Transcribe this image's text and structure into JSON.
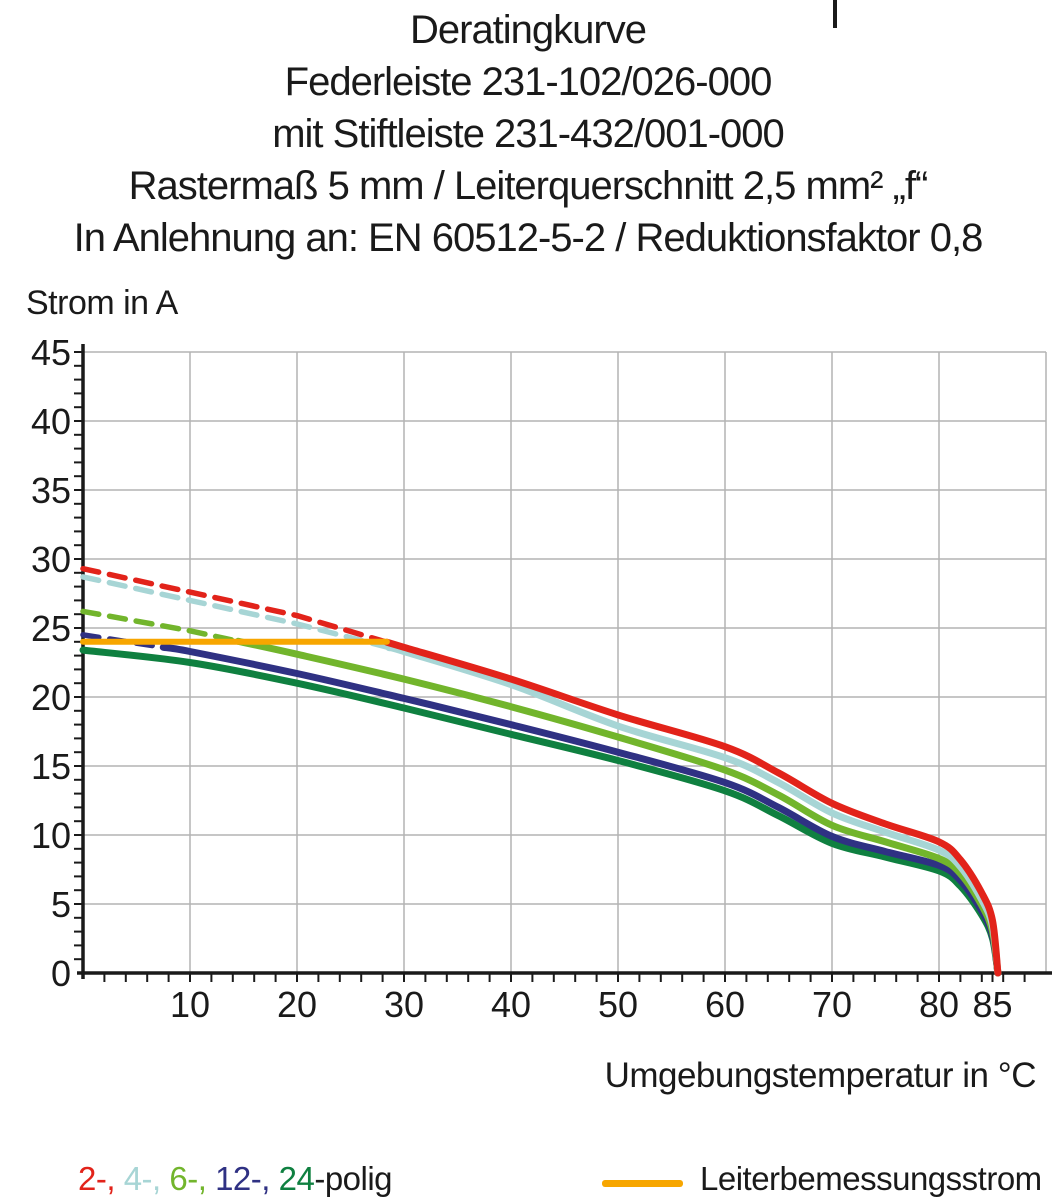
{
  "title": {
    "lines": [
      "Deratingkurve",
      "Federleiste 231-102/026-000",
      "mit Stiftleiste 231-432/001-000",
      "Rastermaß 5 mm / Leiterquerschnitt 2,5 mm² „f“",
      "In Anlehnung an: EN 60512-5-2 / Reduktionsfaktor 0,8"
    ]
  },
  "colors": {
    "red": "#e2231a",
    "light_blue": "#a7d5d5",
    "light_green": "#72b52c",
    "dark_blue": "#2f3183",
    "dark_green": "#0f8040",
    "orange": "#f7a600",
    "grid": "#b3b3b3",
    "axis": "#1a1a1a"
  },
  "chart_data": {
    "type": "line",
    "title": "Deratingkurve",
    "xlabel": "Umgebungstemperatur in °C",
    "ylabel": "Strom in A",
    "xlim": [
      0,
      90
    ],
    "ylim": [
      0,
      45
    ],
    "grid": true,
    "x_tick_labels": [
      {
        "t": 10,
        "label": "10"
      },
      {
        "t": 20,
        "label": "20"
      },
      {
        "t": 30,
        "label": "30"
      },
      {
        "t": 40,
        "label": "40"
      },
      {
        "t": 50,
        "label": "50"
      },
      {
        "t": 60,
        "label": "60"
      },
      {
        "t": 70,
        "label": "70"
      },
      {
        "t": 80,
        "label": "80"
      },
      {
        "t": 85,
        "label": "85"
      }
    ],
    "y_tick_labels": [
      {
        "a": 0,
        "label": "0"
      },
      {
        "a": 5,
        "label": "5"
      },
      {
        "a": 10,
        "label": "10"
      },
      {
        "a": 15,
        "label": "15"
      },
      {
        "a": 20,
        "label": "20"
      },
      {
        "a": 25,
        "label": "25"
      },
      {
        "a": 30,
        "label": "30"
      },
      {
        "a": 35,
        "label": "35"
      },
      {
        "a": 40,
        "label": "40"
      },
      {
        "a": 45,
        "label": "45"
      }
    ],
    "x": [
      0,
      10,
      20,
      30,
      40,
      50,
      60,
      65,
      70,
      75,
      80,
      82,
      84,
      85,
      85.5
    ],
    "series": [
      {
        "name": "24-polig",
        "color": "#0f8040",
        "dash_until": 0,
        "values": [
          23.4,
          22.5,
          21.0,
          19.2,
          17.3,
          15.4,
          13.2,
          11.4,
          9.4,
          8.4,
          7.4,
          6.3,
          4.2,
          2.5,
          0
        ]
      },
      {
        "name": "12-polig",
        "color": "#2f3183",
        "dash_until": 7.5,
        "values": [
          24.5,
          23.3,
          21.7,
          19.9,
          18.0,
          16.0,
          13.8,
          12.0,
          9.9,
          8.8,
          7.8,
          6.7,
          4.5,
          2.7,
          0
        ]
      },
      {
        "name": "6-polig",
        "color": "#72b52c",
        "dash_until": 14.5,
        "values": [
          26.2,
          24.8,
          23.1,
          21.3,
          19.3,
          17.1,
          14.7,
          12.9,
          10.7,
          9.5,
          8.3,
          7.2,
          4.9,
          3.0,
          0
        ]
      },
      {
        "name": "4-polig",
        "color": "#a7d5d5",
        "dash_until": 28.6,
        "values": [
          28.7,
          27.0,
          25.3,
          23.3,
          20.9,
          17.9,
          15.6,
          13.8,
          11.6,
          10.2,
          8.9,
          7.7,
          5.3,
          3.4,
          0
        ]
      },
      {
        "name": "2-polig",
        "color": "#e2231a",
        "dash_until": 28.4,
        "values": [
          29.3,
          27.6,
          25.9,
          23.6,
          21.3,
          18.7,
          16.4,
          14.5,
          12.3,
          10.8,
          9.5,
          8.2,
          5.8,
          3.8,
          0
        ]
      }
    ],
    "rated_current_line": {
      "name": "Leiterbemessungsstrom",
      "color": "#f7a600",
      "value": 24,
      "t_from": 0,
      "t_to": 28.4
    },
    "legend_position": "bottom"
  },
  "legend": {
    "poles": {
      "parts": [
        {
          "text": "2-, ",
          "color": "#e2231a"
        },
        {
          "text": "4-, ",
          "color": "#a7d5d5"
        },
        {
          "text": "6-, ",
          "color": "#72b52c"
        },
        {
          "text": "12-, ",
          "color": "#2f3183"
        },
        {
          "text": "24",
          "color": "#0f8040"
        },
        {
          "text": "-polig",
          "color": "#1a1a1a"
        }
      ]
    },
    "rated": {
      "label": "Leiterbemessungsstrom",
      "swatch_color": "#f7a600"
    }
  }
}
